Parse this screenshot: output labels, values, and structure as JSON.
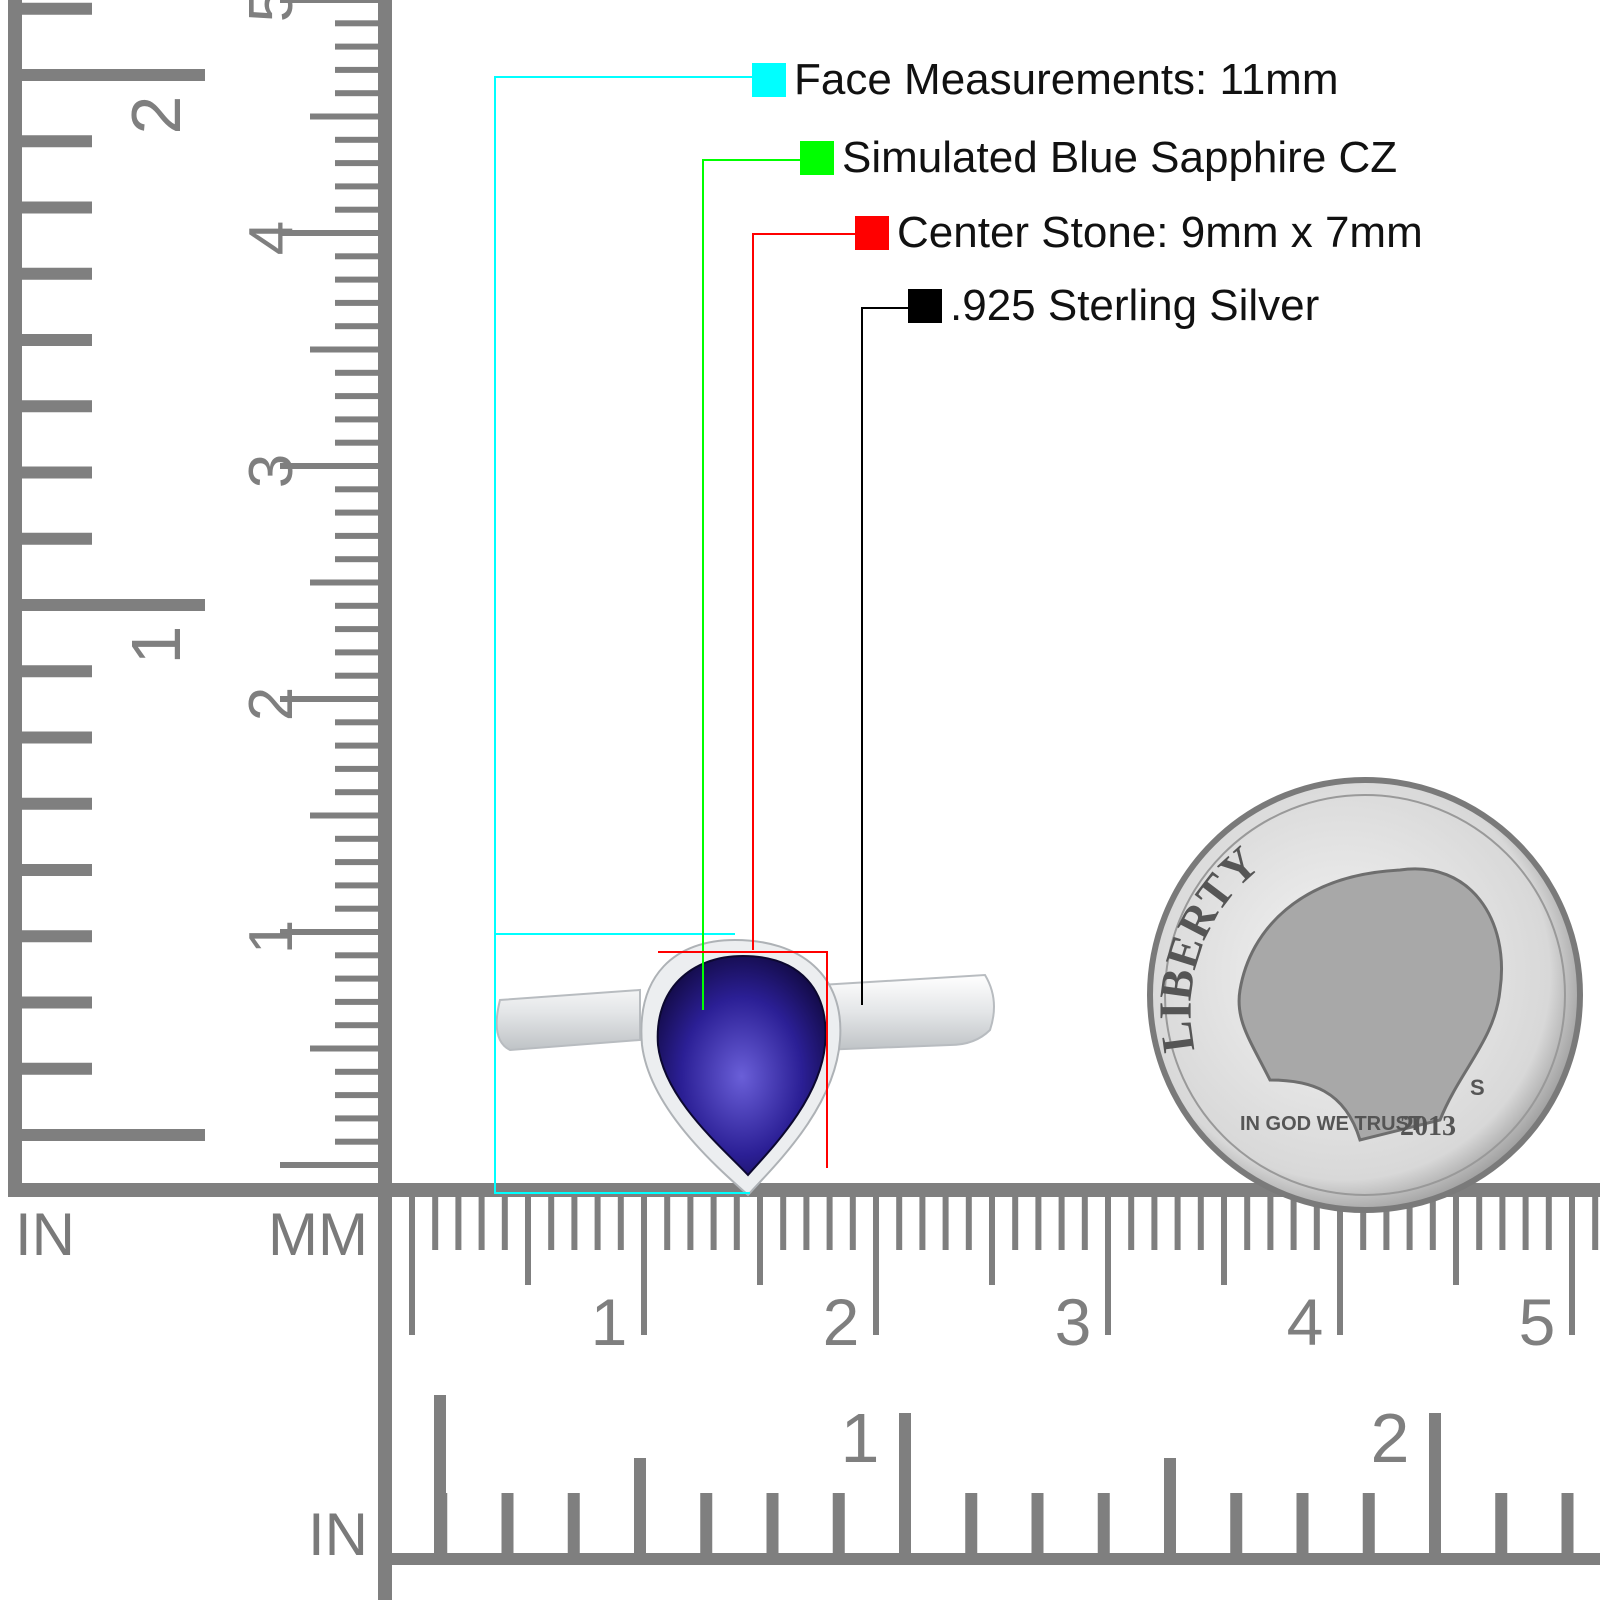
{
  "legend": [
    {
      "label": "Face Measurements: 11mm",
      "color": "#00ffff"
    },
    {
      "label": "Simulated Blue Sapphire CZ",
      "color": "#00ff00"
    },
    {
      "label": "Center Stone: 9mm x 7mm",
      "color": "#ff0000"
    },
    {
      "label": ".925 Sterling Silver",
      "color": "#000000"
    }
  ],
  "rulers": {
    "unit_in_left": "IN",
    "unit_mm": "MM",
    "unit_in_bottom": "IN",
    "vertical_mm_labels": [
      "1",
      "2",
      "3",
      "4",
      "5"
    ],
    "vertical_in_labels": [
      "1",
      "2"
    ],
    "horizontal_mm_labels": [
      "1",
      "2",
      "3",
      "4",
      "5"
    ],
    "horizontal_in_labels": [
      "1",
      "2"
    ],
    "tick_color": "#7f7f7f"
  },
  "product": {
    "stone_color": "#2a1f8a",
    "metal_color": "#e6e8ea"
  },
  "coin": {
    "legend_top": "LIBERTY",
    "motto": "IN GOD WE TRUST",
    "year": "2013",
    "mint_mark": "S"
  }
}
